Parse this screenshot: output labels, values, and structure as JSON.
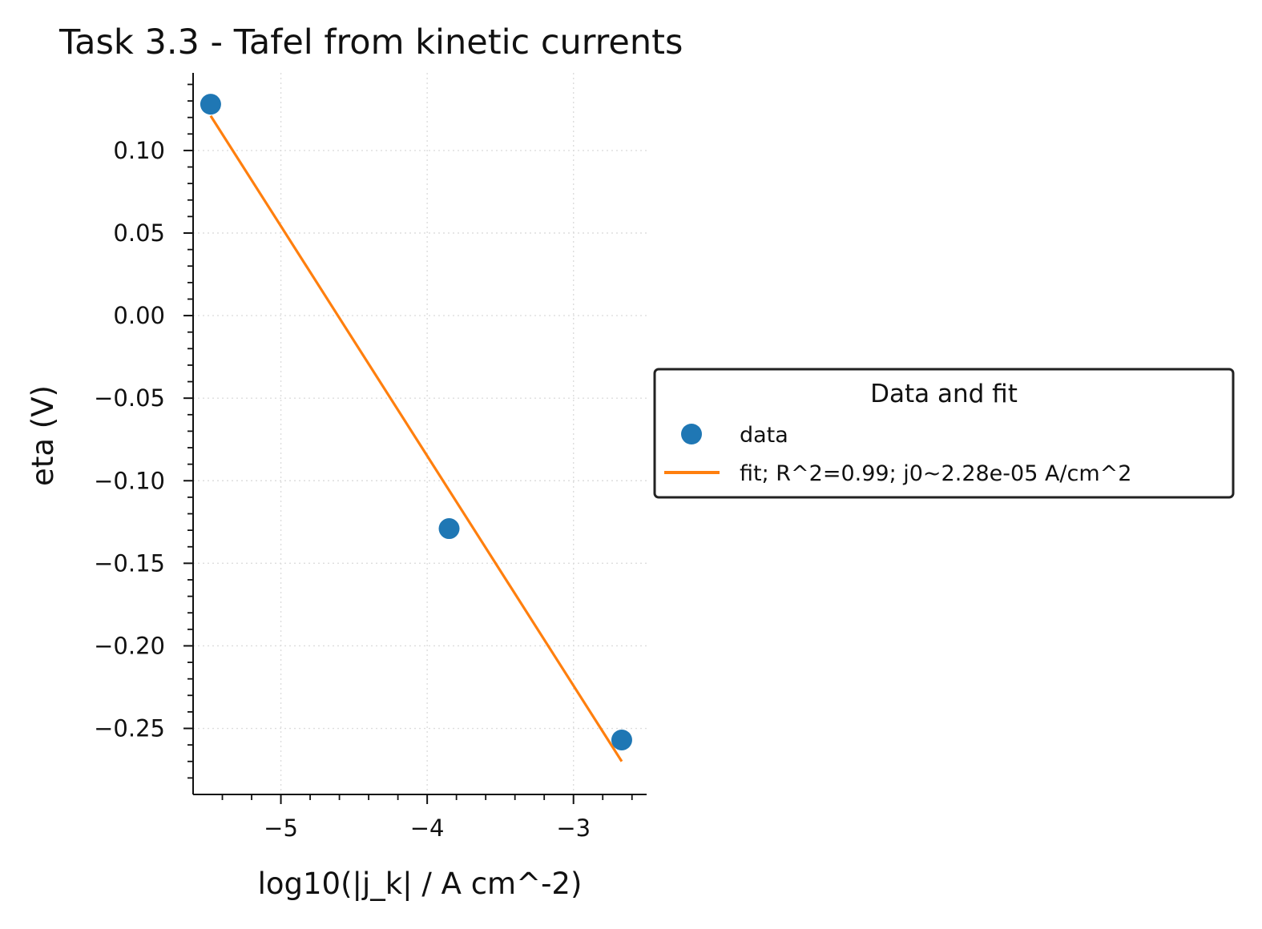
{
  "chart_data": {
    "type": "scatter",
    "title": "Task 3.3 - Tafel from kinetic currents",
    "xlabel": "log10(|j_k| / A cm^-2)",
    "ylabel": "eta (V)",
    "xlim": [
      -5.6,
      -2.5
    ],
    "ylim": [
      -0.29,
      0.147
    ],
    "grid": true,
    "x_ticks": [
      -5,
      -4,
      -3
    ],
    "x_tick_labels": [
      "−5",
      "−4",
      "−3"
    ],
    "y_ticks": [
      0.1,
      0.05,
      0.0,
      -0.05,
      -0.1,
      -0.15,
      -0.2,
      -0.25
    ],
    "y_tick_labels": [
      "0.10",
      "0.05",
      "0.00",
      "−0.05",
      "−0.10",
      "−0.15",
      "−0.20",
      "−0.25"
    ],
    "legend": {
      "title": "Data and fit",
      "placement": "outside-right"
    },
    "series": [
      {
        "name": "data",
        "kind": "scatter",
        "color": "#1f77b4",
        "x": [
          -5.48,
          -3.85,
          -2.67
        ],
        "y": [
          0.128,
          -0.129,
          -0.257
        ]
      },
      {
        "name": "fit; R^2=0.99; j0~2.28e-05 A/cm^2",
        "kind": "line",
        "color": "#ff7f0e",
        "x": [
          -5.48,
          -2.67
        ],
        "y": [
          0.121,
          -0.27
        ]
      }
    ]
  }
}
